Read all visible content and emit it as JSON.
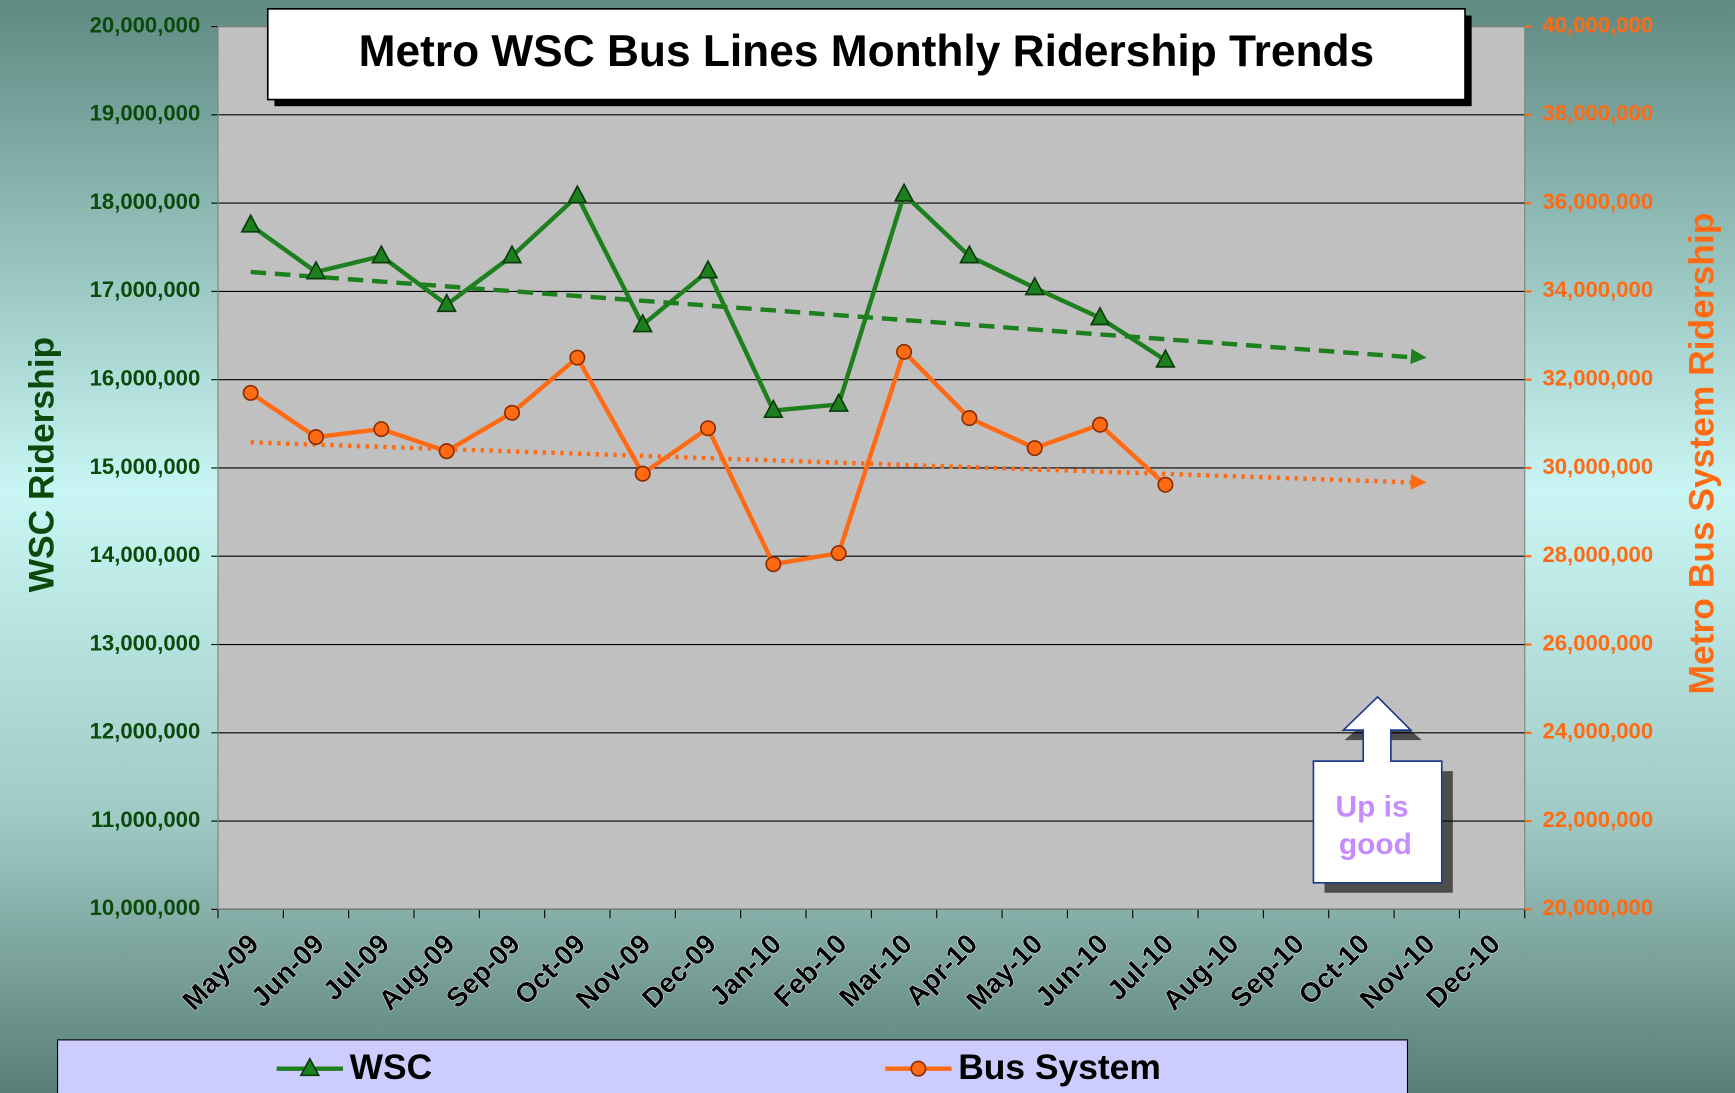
{
  "chart_data": {
    "type": "line",
    "title": "Metro WSC Bus Lines Monthly Ridership Trends",
    "y_label": "WSC Ridership",
    "y2_label": "Metro Bus System Ridership",
    "categories": [
      "May-09",
      "Jun-09",
      "Jul-09",
      "Aug-09",
      "Sep-09",
      "Oct-09",
      "Nov-09",
      "Dec-09",
      "Jan-10",
      "Feb-10",
      "Mar-10",
      "Apr-10",
      "May-10",
      "Jun-10",
      "Jul-10",
      "Aug-10",
      "Sep-10",
      "Oct-10",
      "Nov-10",
      "Dec-10"
    ],
    "series": [
      {
        "name": "WSC",
        "color": "#1e7f1e",
        "marker": "triangle",
        "axis": "y",
        "values": [
          17750000,
          17220000,
          17400000,
          16850000,
          17400000,
          18080000,
          16620000,
          17230000,
          15650000,
          15720000,
          18100000,
          17400000,
          17040000,
          16700000,
          16220000,
          null,
          null,
          null,
          null,
          null
        ],
        "trend": {
          "from": "May-09",
          "to": "Nov-10",
          "values": [
            17220000,
            16250000
          ],
          "style": "dashed"
        }
      },
      {
        "name": "Bus System",
        "color": "#ff6a13",
        "marker": "circle",
        "axis": "y2",
        "values": [
          31700000,
          30700000,
          30880000,
          30380000,
          31250000,
          32500000,
          29870000,
          30900000,
          27820000,
          28070000,
          32630000,
          31130000,
          30450000,
          30980000,
          29620000,
          null,
          null,
          null,
          null,
          null
        ],
        "trend": {
          "from": "May-09",
          "to": "Nov-10",
          "values": [
            30580000,
            29670000
          ],
          "style": "dotted"
        }
      }
    ],
    "ylim": [
      10000000,
      20000000
    ],
    "yticks": [
      {
        "value": 10000000,
        "label": "10,000,000"
      },
      {
        "value": 11000000,
        "label": "11,000,000"
      },
      {
        "value": 12000000,
        "label": "12,000,000"
      },
      {
        "value": 13000000,
        "label": "13,000,000"
      },
      {
        "value": 14000000,
        "label": "14,000,000"
      },
      {
        "value": 15000000,
        "label": "15,000,000"
      },
      {
        "value": 16000000,
        "label": "16,000,000"
      },
      {
        "value": 17000000,
        "label": "17,000,000"
      },
      {
        "value": 18000000,
        "label": "18,000,000"
      },
      {
        "value": 19000000,
        "label": "19,000,000"
      },
      {
        "value": 20000000,
        "label": "20,000,000"
      }
    ],
    "y2lim": [
      20000000,
      40000000
    ],
    "y2ticks": [
      {
        "value": 20000000,
        "label": "20,000,000"
      },
      {
        "value": 22000000,
        "label": "22,000,000"
      },
      {
        "value": 24000000,
        "label": "24,000,000"
      },
      {
        "value": 26000000,
        "label": "26,000,000"
      },
      {
        "value": 28000000,
        "label": "28,000,000"
      },
      {
        "value": 30000000,
        "label": "30,000,000"
      },
      {
        "value": 32000000,
        "label": "32,000,000"
      },
      {
        "value": 34000000,
        "label": "34,000,000"
      },
      {
        "value": 36000000,
        "label": "36,000,000"
      },
      {
        "value": 38000000,
        "label": "38,000,000"
      },
      {
        "value": 40000000,
        "label": "40,000,000"
      }
    ],
    "grid": true,
    "legend": "bottom",
    "annotation": {
      "lines": [
        "Up is",
        "good"
      ],
      "color": "#c58cff"
    }
  }
}
